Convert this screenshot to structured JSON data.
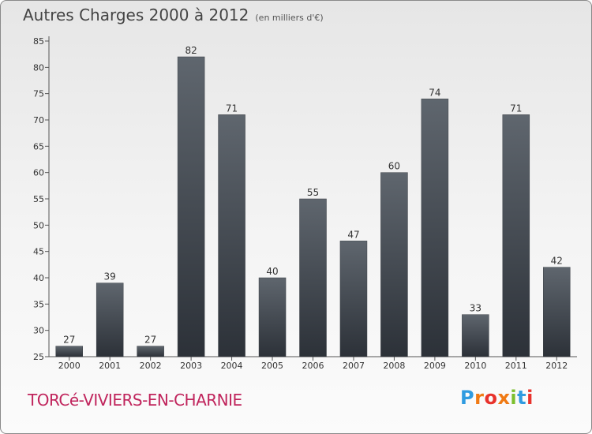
{
  "header": {
    "title": "Autres Charges 2000 à 2012",
    "subtitle": "(en milliers d'€)"
  },
  "footer": {
    "commune": "TORCé-VIVIERS-EN-CHARNIE",
    "brand": "Proxiti",
    "brand_colors": [
      "#2f9be0",
      "#f07a14",
      "#e8322c",
      "#f07a14",
      "#7cbf2e",
      "#2f9be0",
      "#e8322c"
    ]
  },
  "chart_data": {
    "type": "bar",
    "title": "Autres Charges 2000 à 2012",
    "subtitle": "(en milliers d'€)",
    "categories": [
      "2000",
      "2001",
      "2002",
      "2003",
      "2004",
      "2005",
      "2006",
      "2007",
      "2008",
      "2009",
      "2010",
      "2011",
      "2012"
    ],
    "values": [
      27,
      39,
      27,
      82,
      71,
      40,
      55,
      47,
      60,
      74,
      33,
      71,
      42
    ],
    "ylim": [
      25,
      85
    ],
    "yticks": [
      25,
      30,
      35,
      40,
      45,
      50,
      55,
      60,
      65,
      70,
      75,
      80,
      85
    ],
    "grid": false,
    "data_labels": true,
    "bar_color_top": "#5f666e",
    "bar_color_bottom": "#2c3138"
  }
}
